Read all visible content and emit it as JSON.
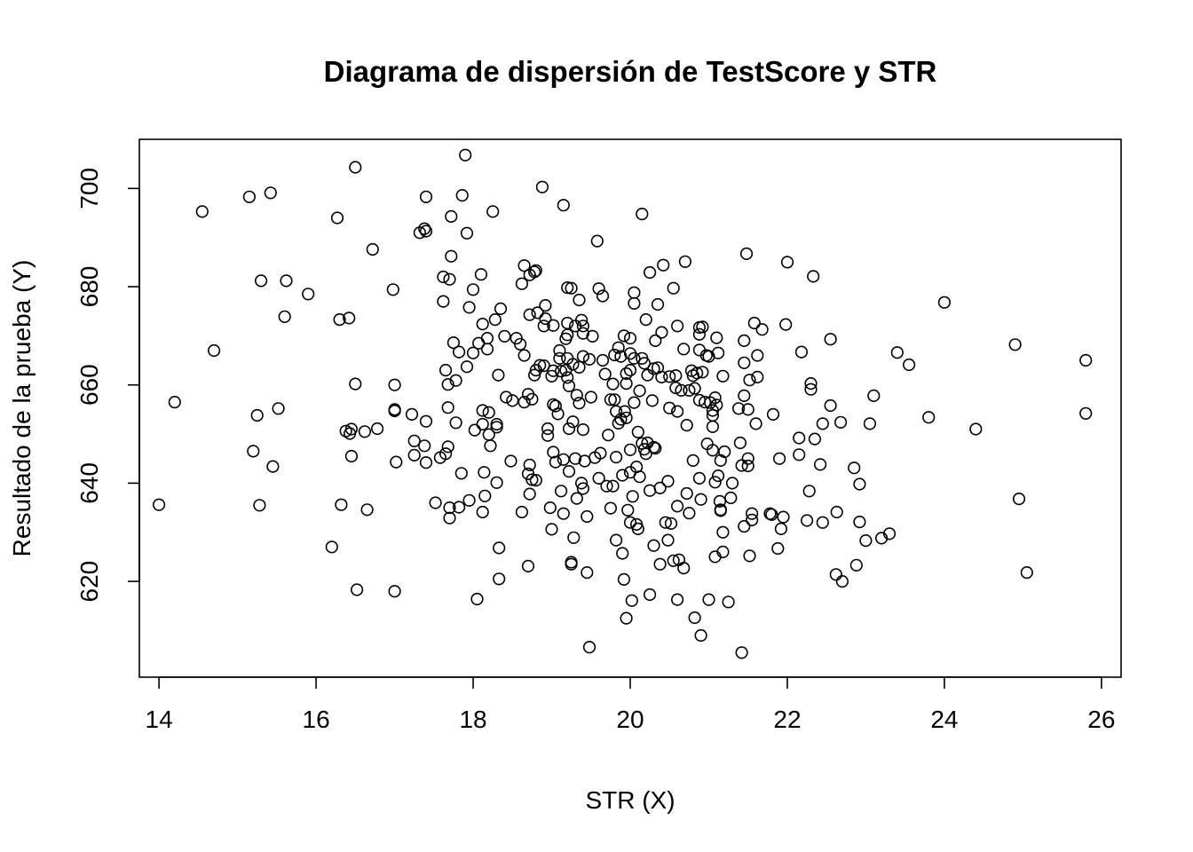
{
  "chart_data": {
    "type": "scatter",
    "title": "Diagrama de dispersión de TestScore y STR",
    "xlabel": "STR (X)",
    "ylabel": "Resultado de la prueba (Y)",
    "xlim": [
      13.75,
      26.25
    ],
    "ylim": [
      600.5,
      710
    ],
    "xticks": [
      14,
      16,
      18,
      20,
      22,
      24,
      26
    ],
    "yticks": [
      620,
      640,
      660,
      680,
      700
    ],
    "xtick_labels": [
      "14",
      "16",
      "18",
      "20",
      "22",
      "24",
      "26"
    ],
    "ytick_labels": [
      "620",
      "640",
      "660",
      "680",
      "700"
    ],
    "grid": false,
    "marker": "open-circle",
    "color": "#000000",
    "points": [
      [
        14.0,
        635.6
      ],
      [
        14.2,
        656.5
      ],
      [
        14.55,
        695.3
      ],
      [
        14.7,
        667.0
      ],
      [
        15.15,
        698.3
      ],
      [
        15.2,
        646.5
      ],
      [
        15.25,
        653.8
      ],
      [
        15.28,
        635.5
      ],
      [
        15.3,
        681.2
      ],
      [
        15.42,
        699.1
      ],
      [
        15.45,
        643.4
      ],
      [
        15.52,
        655.2
      ],
      [
        15.6,
        673.9
      ],
      [
        15.62,
        681.2
      ],
      [
        15.9,
        678.5
      ],
      [
        16.2,
        627.0
      ],
      [
        16.27,
        694.0
      ],
      [
        16.3,
        673.3
      ],
      [
        16.32,
        635.6
      ],
      [
        16.38,
        650.6
      ],
      [
        16.42,
        673.6
      ],
      [
        16.43,
        650.1
      ],
      [
        16.45,
        651.0
      ],
      [
        16.45,
        645.5
      ],
      [
        16.5,
        660.2
      ],
      [
        16.5,
        704.3
      ],
      [
        16.52,
        618.3
      ],
      [
        16.62,
        650.5
      ],
      [
        16.65,
        634.6
      ],
      [
        16.72,
        687.6
      ],
      [
        16.78,
        651.1
      ],
      [
        16.98,
        679.4
      ],
      [
        17.0,
        655.0
      ],
      [
        17.0,
        654.7
      ],
      [
        17.0,
        660.0
      ],
      [
        17.0,
        618.0
      ],
      [
        17.02,
        644.3
      ],
      [
        17.22,
        654.0
      ],
      [
        17.25,
        648.6
      ],
      [
        17.25,
        645.7
      ],
      [
        17.32,
        691.0
      ],
      [
        17.38,
        691.8
      ],
      [
        17.38,
        647.6
      ],
      [
        17.4,
        691.3
      ],
      [
        17.4,
        698.3
      ],
      [
        17.4,
        644.2
      ],
      [
        17.4,
        652.6
      ],
      [
        17.52,
        636.0
      ],
      [
        17.58,
        645.2
      ],
      [
        17.62,
        682.0
      ],
      [
        17.62,
        677.0
      ],
      [
        17.65,
        663.0
      ],
      [
        17.65,
        646.0
      ],
      [
        17.68,
        660.1
      ],
      [
        17.68,
        655.4
      ],
      [
        17.68,
        647.4
      ],
      [
        17.7,
        681.5
      ],
      [
        17.7,
        635.0
      ],
      [
        17.7,
        632.9
      ],
      [
        17.72,
        694.3
      ],
      [
        17.72,
        686.2
      ],
      [
        17.75,
        668.6
      ],
      [
        17.78,
        660.9
      ],
      [
        17.78,
        652.3
      ],
      [
        17.82,
        635.1
      ],
      [
        17.82,
        666.7
      ],
      [
        17.85,
        642.0
      ],
      [
        17.86,
        698.6
      ],
      [
        17.9,
        706.8
      ],
      [
        17.92,
        690.9
      ],
      [
        17.92,
        663.7
      ],
      [
        17.95,
        675.8
      ],
      [
        17.95,
        636.5
      ],
      [
        18.0,
        679.4
      ],
      [
        18.0,
        666.5
      ],
      [
        18.02,
        650.8
      ],
      [
        18.05,
        616.4
      ],
      [
        18.07,
        668.5
      ],
      [
        18.1,
        682.5
      ],
      [
        18.12,
        672.4
      ],
      [
        18.12,
        654.8
      ],
      [
        18.12,
        652.0
      ],
      [
        18.12,
        634.1
      ],
      [
        18.14,
        642.2
      ],
      [
        18.15,
        637.4
      ],
      [
        18.18,
        669.5
      ],
      [
        18.18,
        667.3
      ],
      [
        18.2,
        654.4
      ],
      [
        18.2,
        649.9
      ],
      [
        18.22,
        647.6
      ],
      [
        18.25,
        695.3
      ],
      [
        18.28,
        673.3
      ],
      [
        18.3,
        651.4
      ],
      [
        18.3,
        652.0
      ],
      [
        18.3,
        640.1
      ],
      [
        18.32,
        662.0
      ],
      [
        18.33,
        626.8
      ],
      [
        18.33,
        620.5
      ],
      [
        18.35,
        675.5
      ],
      [
        18.4,
        669.9
      ],
      [
        18.42,
        657.5
      ],
      [
        18.48,
        644.5
      ],
      [
        18.5,
        656.8
      ],
      [
        18.55,
        669.5
      ],
      [
        18.6,
        668.3
      ],
      [
        18.62,
        680.6
      ],
      [
        18.62,
        634.1
      ],
      [
        18.65,
        666.0
      ],
      [
        18.65,
        656.5
      ],
      [
        18.65,
        684.3
      ],
      [
        18.7,
        658.1
      ],
      [
        18.7,
        641.9
      ],
      [
        18.7,
        623.1
      ],
      [
        18.72,
        682.4
      ],
      [
        18.72,
        674.3
      ],
      [
        18.72,
        643.7
      ],
      [
        18.72,
        637.8
      ],
      [
        18.75,
        657.1
      ],
      [
        18.75,
        640.7
      ],
      [
        18.78,
        683.0
      ],
      [
        18.78,
        662.0
      ],
      [
        18.8,
        683.3
      ],
      [
        18.8,
        663.0
      ],
      [
        18.8,
        640.6
      ],
      [
        18.82,
        674.7
      ],
      [
        18.85,
        664.0
      ],
      [
        18.88,
        700.3
      ],
      [
        18.9,
        672.0
      ],
      [
        18.9,
        663.9
      ],
      [
        18.92,
        676.2
      ],
      [
        18.92,
        673.5
      ],
      [
        18.95,
        651.1
      ],
      [
        18.95,
        649.7
      ],
      [
        18.98,
        635.0
      ],
      [
        19.0,
        661.8
      ],
      [
        19.0,
        630.6
      ],
      [
        19.02,
        672.1
      ],
      [
        19.02,
        662.9
      ],
      [
        19.02,
        656.0
      ],
      [
        19.02,
        646.3
      ],
      [
        19.05,
        655.7
      ],
      [
        19.05,
        644.3
      ],
      [
        19.08,
        654.1
      ],
      [
        19.1,
        667.0
      ],
      [
        19.1,
        665.4
      ],
      [
        19.12,
        638.4
      ],
      [
        19.12,
        662.8
      ],
      [
        19.15,
        696.6
      ],
      [
        19.15,
        644.8
      ],
      [
        19.15,
        633.8
      ],
      [
        19.18,
        663.0
      ],
      [
        19.18,
        669.4
      ],
      [
        19.2,
        679.8
      ],
      [
        19.2,
        672.6
      ],
      [
        19.2,
        670.2
      ],
      [
        19.2,
        665.4
      ],
      [
        19.2,
        661.5
      ],
      [
        19.22,
        659.8
      ],
      [
        19.22,
        651.1
      ],
      [
        19.22,
        642.4
      ],
      [
        19.25,
        679.7
      ],
      [
        19.25,
        623.9
      ],
      [
        19.25,
        623.5
      ],
      [
        19.27,
        664.2
      ],
      [
        19.27,
        652.5
      ],
      [
        19.28,
        628.9
      ],
      [
        19.3,
        672.0
      ],
      [
        19.3,
        645.0
      ],
      [
        19.32,
        657.9
      ],
      [
        19.32,
        636.9
      ],
      [
        19.35,
        677.3
      ],
      [
        19.35,
        663.6
      ],
      [
        19.35,
        656.3
      ],
      [
        19.38,
        673.2
      ],
      [
        19.38,
        640.0
      ],
      [
        19.4,
        672.0
      ],
      [
        19.4,
        670.5
      ],
      [
        19.4,
        665.8
      ],
      [
        19.4,
        650.9
      ],
      [
        19.4,
        638.9
      ],
      [
        19.42,
        644.5
      ],
      [
        19.45,
        621.8
      ],
      [
        19.45,
        633.2
      ],
      [
        19.48,
        606.6
      ],
      [
        19.48,
        665.2
      ],
      [
        19.5,
        657.5
      ],
      [
        19.52,
        669.9
      ],
      [
        19.55,
        645.2
      ],
      [
        19.58,
        689.3
      ],
      [
        19.6,
        679.6
      ],
      [
        19.6,
        641.0
      ],
      [
        19.62,
        646.1
      ],
      [
        19.65,
        678.1
      ],
      [
        19.65,
        665.0
      ],
      [
        19.68,
        662.2
      ],
      [
        19.7,
        639.4
      ],
      [
        19.72,
        649.8
      ],
      [
        19.75,
        657.0
      ],
      [
        19.75,
        634.9
      ],
      [
        19.78,
        660.2
      ],
      [
        19.78,
        639.4
      ],
      [
        19.8,
        666.1
      ],
      [
        19.8,
        657.0
      ],
      [
        19.82,
        654.6
      ],
      [
        19.82,
        645.3
      ],
      [
        19.82,
        628.4
      ],
      [
        19.85,
        667.6
      ],
      [
        19.85,
        652.2
      ],
      [
        19.88,
        665.8
      ],
      [
        19.88,
        653.0
      ],
      [
        19.9,
        641.6
      ],
      [
        19.9,
        625.7
      ],
      [
        19.92,
        620.4
      ],
      [
        19.92,
        670.0
      ],
      [
        19.93,
        654.6
      ],
      [
        19.95,
        612.5
      ],
      [
        19.95,
        653.3
      ],
      [
        19.95,
        660.3
      ],
      [
        19.95,
        662.3
      ],
      [
        19.97,
        634.5
      ],
      [
        20.0,
        669.5
      ],
      [
        20.0,
        666.4
      ],
      [
        20.0,
        663.0
      ],
      [
        20.0,
        646.8
      ],
      [
        20.0,
        642.2
      ],
      [
        20.0,
        632.0
      ],
      [
        20.02,
        616.1
      ],
      [
        20.03,
        637.3
      ],
      [
        20.05,
        678.8
      ],
      [
        20.05,
        676.6
      ],
      [
        20.05,
        665.4
      ],
      [
        20.05,
        656.4
      ],
      [
        20.08,
        643.3
      ],
      [
        20.08,
        631.6
      ],
      [
        20.1,
        650.4
      ],
      [
        20.1,
        630.7
      ],
      [
        20.12,
        658.8
      ],
      [
        20.12,
        641.3
      ],
      [
        20.15,
        694.8
      ],
      [
        20.15,
        665.4
      ],
      [
        20.15,
        648.1
      ],
      [
        20.18,
        664.4
      ],
      [
        20.18,
        646.9
      ],
      [
        20.2,
        673.3
      ],
      [
        20.2,
        646.0
      ],
      [
        20.22,
        662.0
      ],
      [
        20.22,
        648.2
      ],
      [
        20.25,
        682.9
      ],
      [
        20.25,
        638.5
      ],
      [
        20.25,
        617.3
      ],
      [
        20.28,
        656.8
      ],
      [
        20.3,
        663.3
      ],
      [
        20.3,
        647.3
      ],
      [
        20.3,
        627.3
      ],
      [
        20.32,
        647.1
      ],
      [
        20.32,
        669.0
      ],
      [
        20.35,
        676.4
      ],
      [
        20.35,
        663.5
      ],
      [
        20.38,
        639.0
      ],
      [
        20.38,
        623.5
      ],
      [
        20.4,
        670.7
      ],
      [
        20.4,
        661.6
      ],
      [
        20.42,
        684.4
      ],
      [
        20.45,
        632.0
      ],
      [
        20.48,
        640.4
      ],
      [
        20.48,
        628.4
      ],
      [
        20.5,
        661.7
      ],
      [
        20.5,
        655.3
      ],
      [
        20.52,
        631.8
      ],
      [
        20.55,
        679.7
      ],
      [
        20.55,
        624.2
      ],
      [
        20.58,
        661.9
      ],
      [
        20.58,
        659.4
      ],
      [
        20.6,
        672.0
      ],
      [
        20.6,
        654.6
      ],
      [
        20.6,
        616.3
      ],
      [
        20.6,
        635.3
      ],
      [
        20.62,
        624.4
      ],
      [
        20.65,
        658.9
      ],
      [
        20.68,
        667.3
      ],
      [
        20.68,
        622.7
      ],
      [
        20.7,
        685.1
      ],
      [
        20.72,
        651.8
      ],
      [
        20.72,
        637.9
      ],
      [
        20.75,
        633.9
      ],
      [
        20.75,
        658.9
      ],
      [
        20.78,
        662.9
      ],
      [
        20.8,
        661.9
      ],
      [
        20.8,
        644.6
      ],
      [
        20.82,
        659.3
      ],
      [
        20.82,
        612.6
      ],
      [
        20.85,
        662.4
      ],
      [
        20.88,
        671.7
      ],
      [
        20.88,
        670.3
      ],
      [
        20.88,
        667.1
      ],
      [
        20.88,
        656.9
      ],
      [
        20.88,
        641.0
      ],
      [
        20.9,
        609.0
      ],
      [
        20.9,
        636.7
      ],
      [
        20.92,
        671.8
      ],
      [
        20.92,
        662.6
      ],
      [
        20.95,
        656.5
      ],
      [
        20.97,
        666.0
      ],
      [
        20.98,
        648.0
      ],
      [
        21.0,
        665.8
      ],
      [
        21.0,
        616.3
      ],
      [
        21.02,
        656.4
      ],
      [
        21.05,
        654.8
      ],
      [
        21.05,
        653.8
      ],
      [
        21.05,
        651.5
      ],
      [
        21.05,
        646.7
      ],
      [
        21.08,
        657.4
      ],
      [
        21.08,
        640.2
      ],
      [
        21.08,
        625.0
      ],
      [
        21.1,
        669.6
      ],
      [
        21.1,
        655.9
      ],
      [
        21.12,
        666.5
      ],
      [
        21.12,
        641.5
      ],
      [
        21.14,
        636.3
      ],
      [
        21.15,
        644.6
      ],
      [
        21.15,
        634.6
      ],
      [
        21.15,
        634.4
      ],
      [
        21.18,
        661.8
      ],
      [
        21.18,
        630.0
      ],
      [
        21.18,
        626.0
      ],
      [
        21.2,
        646.4
      ],
      [
        21.25,
        615.8
      ],
      [
        21.28,
        637.0
      ],
      [
        21.3,
        640.0
      ],
      [
        21.38,
        655.2
      ],
      [
        21.4,
        648.2
      ],
      [
        21.42,
        605.5
      ],
      [
        21.42,
        643.6
      ],
      [
        21.45,
        669.0
      ],
      [
        21.45,
        664.5
      ],
      [
        21.45,
        657.8
      ],
      [
        21.45,
        631.2
      ],
      [
        21.48,
        686.7
      ],
      [
        21.5,
        655.0
      ],
      [
        21.5,
        645.0
      ],
      [
        21.5,
        643.5
      ],
      [
        21.52,
        661.0
      ],
      [
        21.52,
        625.2
      ],
      [
        21.55,
        633.8
      ],
      [
        21.55,
        632.5
      ],
      [
        21.58,
        672.6
      ],
      [
        21.6,
        652.1
      ],
      [
        21.62,
        661.6
      ],
      [
        21.62,
        666.0
      ],
      [
        21.68,
        671.3
      ],
      [
        21.78,
        633.8
      ],
      [
        21.8,
        633.6
      ],
      [
        21.82,
        654.0
      ],
      [
        21.88,
        626.7
      ],
      [
        21.9,
        645.0
      ],
      [
        21.92,
        630.7
      ],
      [
        21.95,
        633.1
      ],
      [
        21.98,
        672.3
      ],
      [
        22.0,
        685.0
      ],
      [
        22.15,
        645.8
      ],
      [
        22.15,
        649.2
      ],
      [
        22.18,
        666.7
      ],
      [
        22.25,
        632.4
      ],
      [
        22.28,
        638.4
      ],
      [
        22.3,
        660.3
      ],
      [
        22.3,
        659.1
      ],
      [
        22.33,
        682.1
      ],
      [
        22.35,
        649.0
      ],
      [
        22.42,
        643.8
      ],
      [
        22.45,
        652.1
      ],
      [
        22.45,
        632.0
      ],
      [
        22.55,
        669.3
      ],
      [
        22.55,
        655.8
      ],
      [
        22.62,
        621.4
      ],
      [
        22.63,
        634.1
      ],
      [
        22.68,
        652.4
      ],
      [
        22.7,
        620.0
      ],
      [
        22.85,
        643.1
      ],
      [
        22.88,
        623.3
      ],
      [
        22.92,
        639.8
      ],
      [
        22.92,
        632.1
      ],
      [
        23.0,
        628.3
      ],
      [
        23.05,
        652.1
      ],
      [
        23.1,
        657.8
      ],
      [
        23.2,
        628.8
      ],
      [
        23.3,
        629.7
      ],
      [
        23.4,
        666.6
      ],
      [
        23.55,
        664.1
      ],
      [
        23.8,
        653.4
      ],
      [
        24.0,
        676.8
      ],
      [
        24.4,
        651.0
      ],
      [
        24.9,
        668.2
      ],
      [
        24.95,
        636.8
      ],
      [
        25.05,
        621.8
      ],
      [
        25.8,
        665.0
      ],
      [
        25.8,
        654.2
      ]
    ]
  }
}
